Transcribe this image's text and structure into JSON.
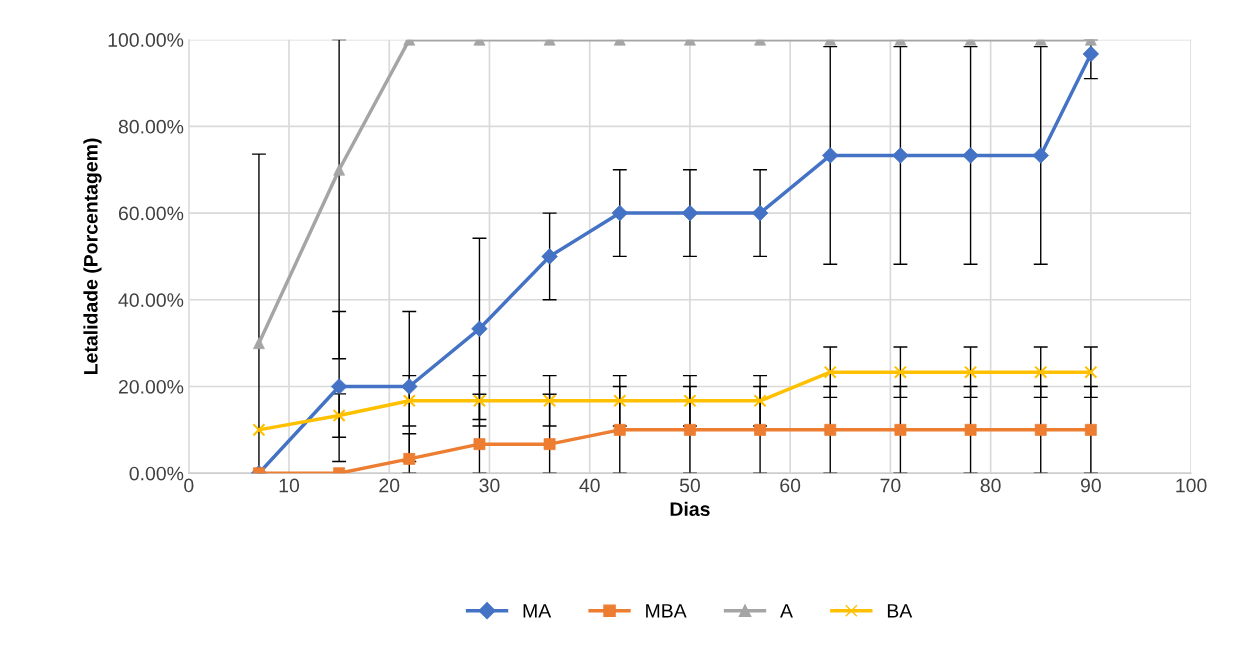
{
  "chart_data": {
    "type": "line",
    "xlabel": "Dias",
    "ylabel": "Letalidade (Porcentagem)",
    "x": [
      7,
      15,
      22,
      29,
      36,
      43,
      50,
      57,
      64,
      71,
      78,
      85,
      90
    ],
    "series": [
      {
        "name": "MA",
        "color": "#4472c4",
        "marker": "diamond",
        "values": [
          0,
          20,
          20,
          33.3,
          50,
          60,
          60,
          60,
          73.3,
          73.3,
          73.3,
          73.3,
          96.7
        ],
        "errors": [
          null,
          17.3,
          17.3,
          20.9,
          10,
          10,
          10,
          10,
          25.1,
          25.1,
          25.1,
          25.1,
          [
            91,
            100
          ]
        ]
      },
      {
        "name": "MBA",
        "color": "#ed7d31",
        "marker": "square",
        "values": [
          0,
          0,
          3.3,
          6.7,
          6.7,
          10,
          10,
          10,
          10,
          10,
          10,
          10,
          10
        ],
        "errors": [
          null,
          null,
          [
            0,
            9.1
          ],
          [
            0,
            18.2
          ],
          [
            0,
            18.2
          ],
          10,
          10,
          10,
          10,
          10,
          10,
          10,
          10
        ]
      },
      {
        "name": "A",
        "color": "#a5a5a5",
        "marker": "triangle",
        "values": [
          30,
          70,
          100,
          100,
          100,
          100,
          100,
          100,
          100,
          100,
          100,
          100,
          100
        ],
        "errors": [
          [
            0,
            73.6
          ],
          [
            26.4,
            100
          ],
          null,
          null,
          null,
          null,
          null,
          null,
          null,
          null,
          null,
          null,
          null
        ]
      },
      {
        "name": "BA",
        "color": "#ffc000",
        "marker": "cross",
        "values": [
          10,
          13.3,
          16.7,
          16.7,
          16.7,
          16.7,
          16.7,
          16.7,
          23.3,
          23.3,
          23.3,
          23.3,
          23.3
        ],
        "errors": [
          null,
          5,
          5.8,
          5.8,
          5.8,
          5.8,
          5.8,
          5.8,
          5.8,
          5.8,
          5.8,
          5.8,
          5.8
        ]
      }
    ],
    "xlim": [
      0,
      100
    ],
    "xticks": [
      0,
      10,
      20,
      30,
      40,
      50,
      60,
      70,
      80,
      90,
      100
    ],
    "ylim": [
      0,
      100
    ],
    "yticks": [
      {
        "value": 0,
        "label": "0.00%"
      },
      {
        "value": 20,
        "label": "20.00%"
      },
      {
        "value": 40,
        "label": "40.00%"
      },
      {
        "value": 60,
        "label": "60.00%"
      },
      {
        "value": 80,
        "label": "80.00%"
      },
      {
        "value": 100,
        "label": "100.00%"
      }
    ],
    "grid": true,
    "legend": "bottom",
    "line_style": "solid"
  }
}
